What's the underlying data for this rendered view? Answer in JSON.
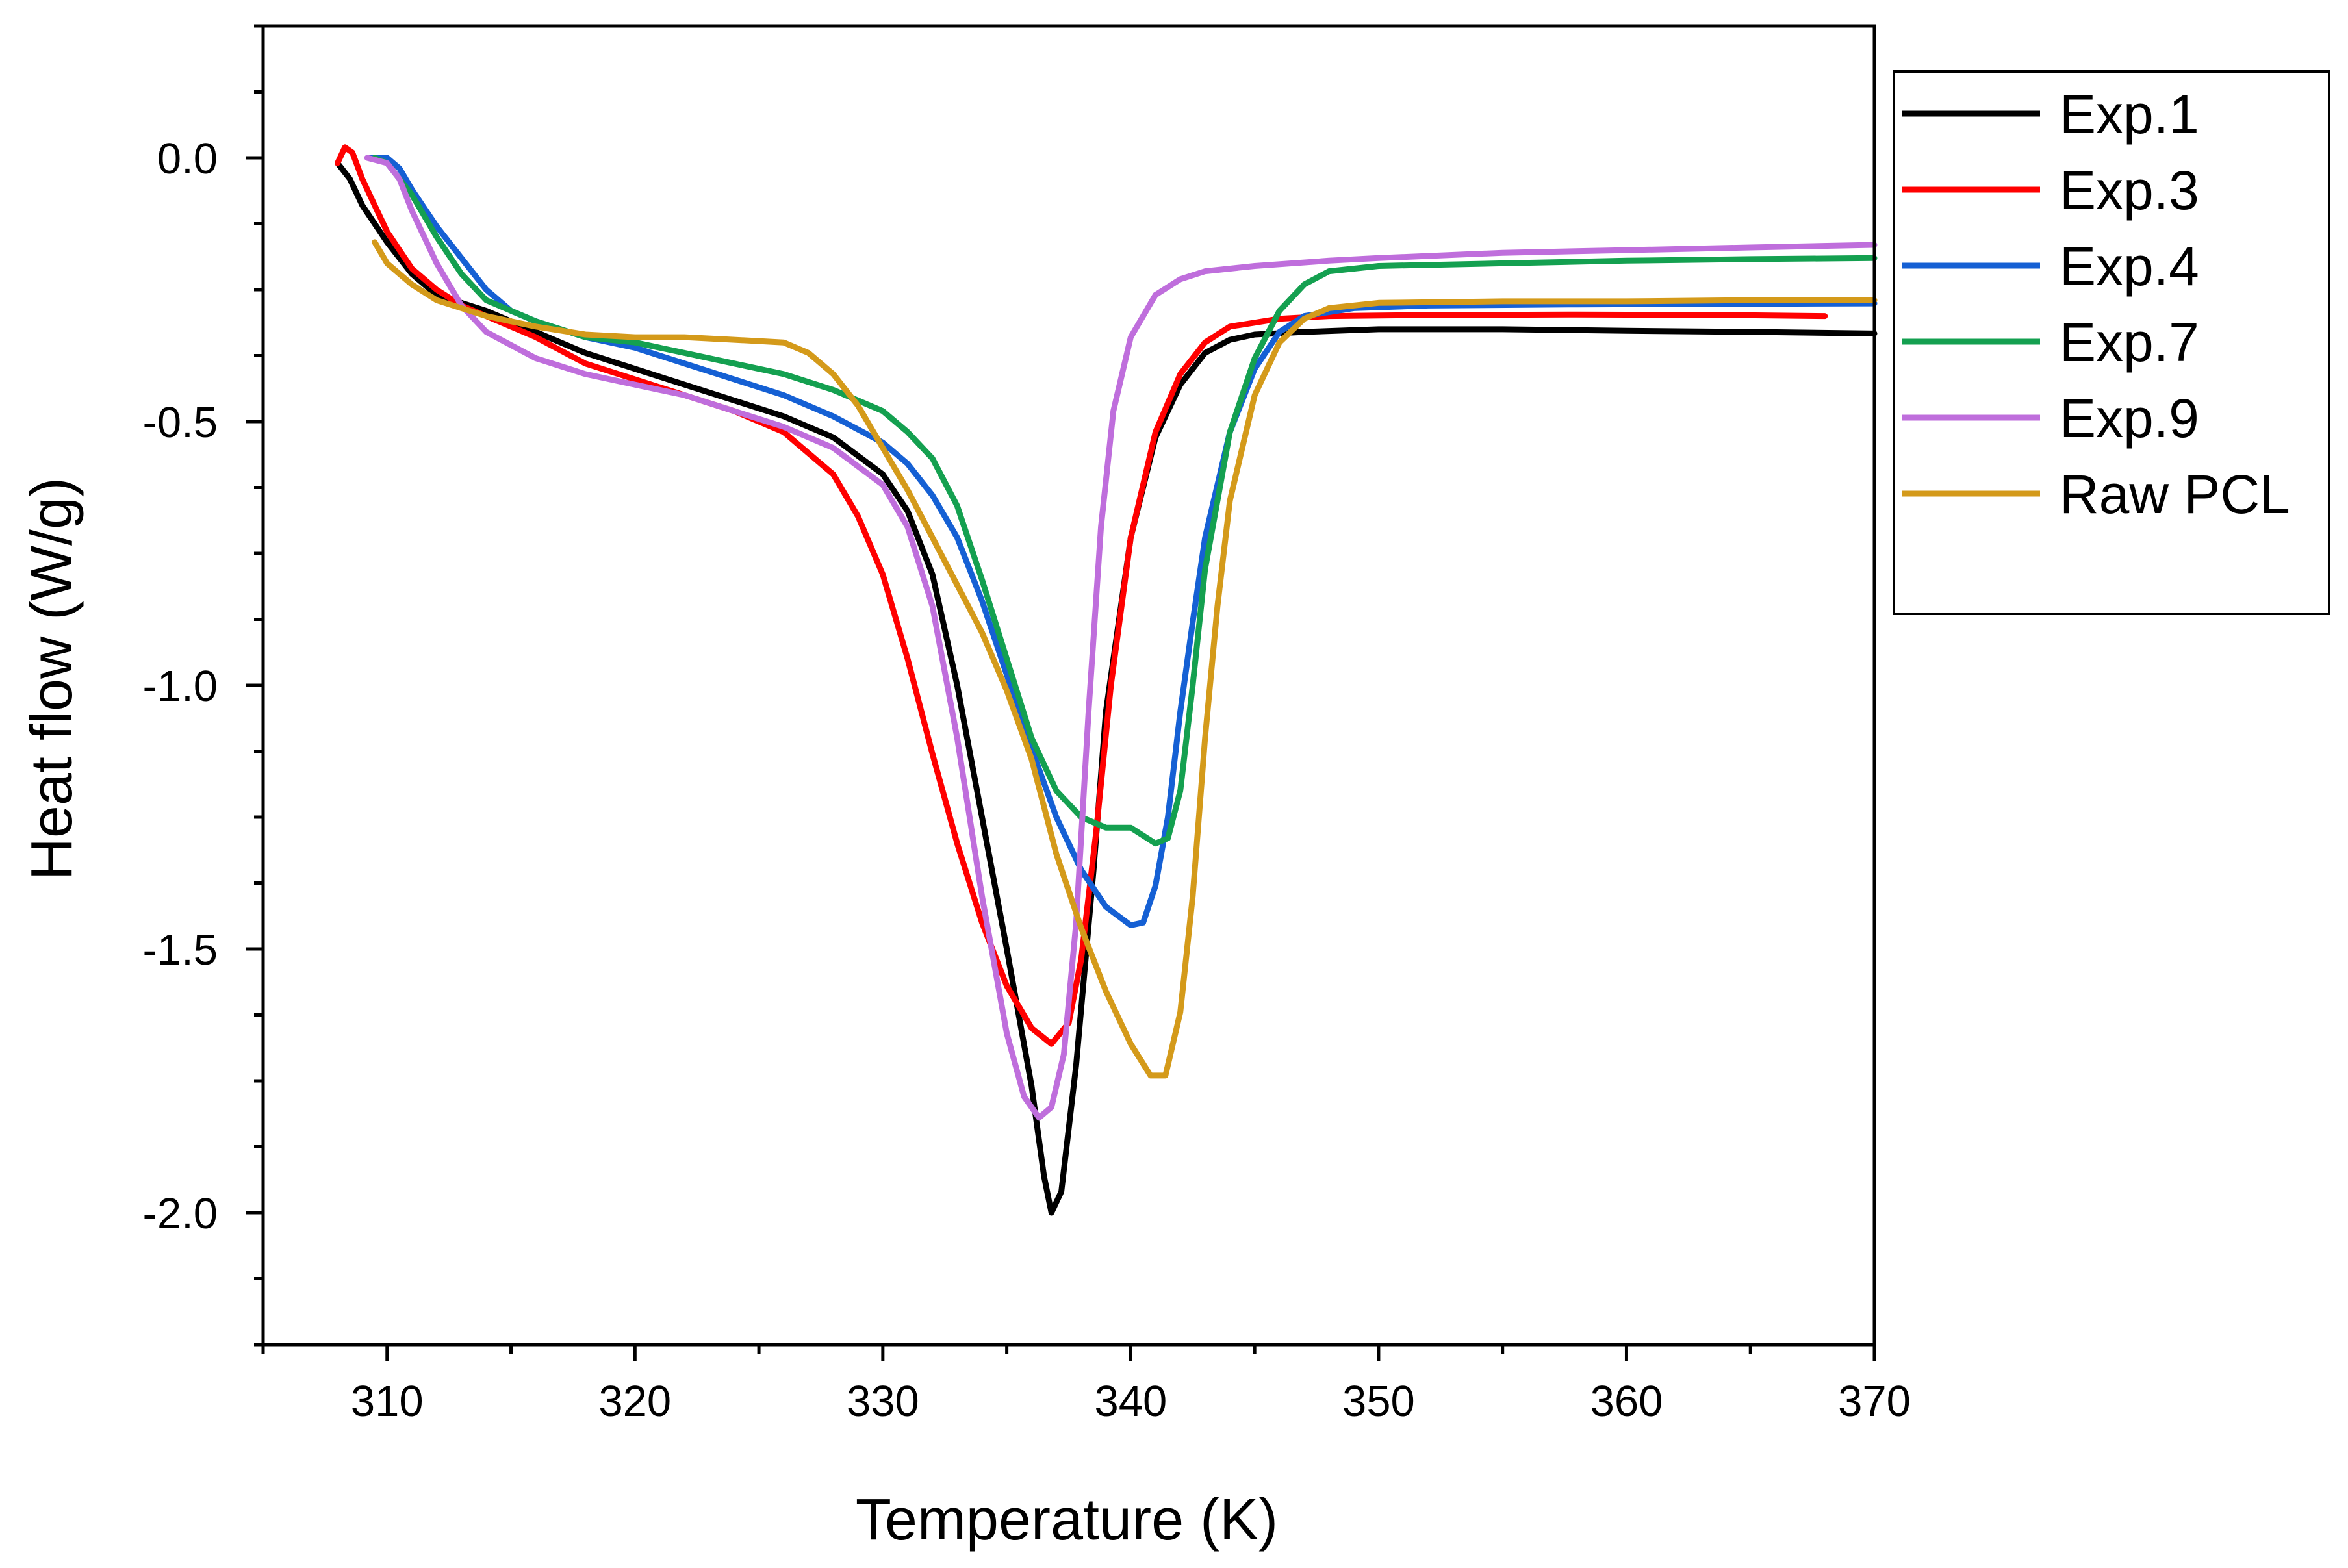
{
  "chart_data": {
    "type": "line",
    "title": "",
    "xlabel": "Temperature (K)",
    "ylabel": "Heat flow (W/g)",
    "xlim": [
      305,
      370
    ],
    "ylim": [
      -2.25,
      0.25
    ],
    "x_ticks": [
      310,
      320,
      330,
      340,
      350,
      360,
      370
    ],
    "x_tick_labels": [
      "310",
      "320",
      "330",
      "340",
      "350",
      "360",
      "370"
    ],
    "y_ticks": [
      0.0,
      -0.5,
      -1.0,
      -1.5,
      -2.0
    ],
    "y_tick_labels": [
      "0.0",
      "-0.5",
      "-1.0",
      "-1.5",
      "-2.0"
    ],
    "grid": false,
    "legend_position": "right",
    "series": [
      {
        "name": "Exp.1",
        "color": "#000000",
        "points": [
          [
            308.0,
            -0.01
          ],
          [
            308.5,
            -0.04
          ],
          [
            309.0,
            -0.09
          ],
          [
            310.0,
            -0.16
          ],
          [
            311.0,
            -0.22
          ],
          [
            312.0,
            -0.26
          ],
          [
            314.0,
            -0.29
          ],
          [
            316.0,
            -0.33
          ],
          [
            318.0,
            -0.37
          ],
          [
            320.0,
            -0.4
          ],
          [
            322.0,
            -0.43
          ],
          [
            324.0,
            -0.46
          ],
          [
            326.0,
            -0.49
          ],
          [
            328.0,
            -0.53
          ],
          [
            330.0,
            -0.6
          ],
          [
            331.0,
            -0.67
          ],
          [
            332.0,
            -0.79
          ],
          [
            333.0,
            -1.0
          ],
          [
            334.0,
            -1.25
          ],
          [
            335.0,
            -1.5
          ],
          [
            336.0,
            -1.76
          ],
          [
            336.5,
            -1.93
          ],
          [
            336.8,
            -2.0
          ],
          [
            337.2,
            -1.96
          ],
          [
            337.8,
            -1.72
          ],
          [
            338.5,
            -1.35
          ],
          [
            339.0,
            -1.05
          ],
          [
            340.0,
            -0.72
          ],
          [
            341.0,
            -0.53
          ],
          [
            342.0,
            -0.43
          ],
          [
            343.0,
            -0.37
          ],
          [
            344.0,
            -0.345
          ],
          [
            345.0,
            -0.335
          ],
          [
            347.0,
            -0.33
          ],
          [
            350.0,
            -0.325
          ],
          [
            355.0,
            -0.325
          ],
          [
            360.0,
            -0.328
          ],
          [
            365.0,
            -0.33
          ],
          [
            370.0,
            -0.333
          ]
        ]
      },
      {
        "name": "Exp.3",
        "color": "#ff0000",
        "points": [
          [
            308.0,
            -0.01
          ],
          [
            308.3,
            0.02
          ],
          [
            308.6,
            0.01
          ],
          [
            309.0,
            -0.04
          ],
          [
            310.0,
            -0.14
          ],
          [
            311.0,
            -0.21
          ],
          [
            312.0,
            -0.25
          ],
          [
            313.0,
            -0.28
          ],
          [
            314.0,
            -0.3
          ],
          [
            316.0,
            -0.34
          ],
          [
            318.0,
            -0.39
          ],
          [
            320.0,
            -0.42
          ],
          [
            322.0,
            -0.45
          ],
          [
            324.0,
            -0.48
          ],
          [
            326.0,
            -0.52
          ],
          [
            328.0,
            -0.6
          ],
          [
            329.0,
            -0.68
          ],
          [
            330.0,
            -0.79
          ],
          [
            331.0,
            -0.95
          ],
          [
            332.0,
            -1.13
          ],
          [
            333.0,
            -1.3
          ],
          [
            334.0,
            -1.45
          ],
          [
            335.0,
            -1.57
          ],
          [
            336.0,
            -1.65
          ],
          [
            336.8,
            -1.68
          ],
          [
            337.5,
            -1.64
          ],
          [
            338.0,
            -1.52
          ],
          [
            338.6,
            -1.28
          ],
          [
            339.2,
            -1.0
          ],
          [
            340.0,
            -0.72
          ],
          [
            341.0,
            -0.52
          ],
          [
            342.0,
            -0.41
          ],
          [
            343.0,
            -0.35
          ],
          [
            344.0,
            -0.32
          ],
          [
            346.0,
            -0.305
          ],
          [
            348.0,
            -0.3
          ],
          [
            352.0,
            -0.298
          ],
          [
            358.0,
            -0.297
          ],
          [
            364.0,
            -0.298
          ],
          [
            368.0,
            -0.3
          ]
        ]
      },
      {
        "name": "Exp.4",
        "color": "#1560d4",
        "points": [
          [
            309.3,
            0.0
          ],
          [
            310.0,
            0.0
          ],
          [
            310.5,
            -0.02
          ],
          [
            311.0,
            -0.06
          ],
          [
            312.0,
            -0.13
          ],
          [
            313.0,
            -0.19
          ],
          [
            314.0,
            -0.25
          ],
          [
            315.0,
            -0.29
          ],
          [
            316.0,
            -0.31
          ],
          [
            318.0,
            -0.34
          ],
          [
            320.0,
            -0.36
          ],
          [
            322.0,
            -0.39
          ],
          [
            324.0,
            -0.42
          ],
          [
            326.0,
            -0.45
          ],
          [
            328.0,
            -0.49
          ],
          [
            330.0,
            -0.54
          ],
          [
            331.0,
            -0.58
          ],
          [
            332.0,
            -0.64
          ],
          [
            333.0,
            -0.72
          ],
          [
            334.0,
            -0.84
          ],
          [
            335.0,
            -0.98
          ],
          [
            336.0,
            -1.12
          ],
          [
            337.0,
            -1.25
          ],
          [
            338.0,
            -1.35
          ],
          [
            339.0,
            -1.42
          ],
          [
            340.0,
            -1.455
          ],
          [
            340.5,
            -1.45
          ],
          [
            341.0,
            -1.38
          ],
          [
            341.5,
            -1.25
          ],
          [
            342.0,
            -1.05
          ],
          [
            342.5,
            -0.88
          ],
          [
            343.0,
            -0.72
          ],
          [
            344.0,
            -0.52
          ],
          [
            345.0,
            -0.4
          ],
          [
            346.0,
            -0.33
          ],
          [
            347.0,
            -0.3
          ],
          [
            349.0,
            -0.285
          ],
          [
            352.0,
            -0.28
          ],
          [
            358.0,
            -0.278
          ],
          [
            364.0,
            -0.277
          ],
          [
            370.0,
            -0.276
          ]
        ]
      },
      {
        "name": "Exp.7",
        "color": "#14a050",
        "points": [
          [
            309.5,
            0.0
          ],
          [
            310.0,
            -0.01
          ],
          [
            311.0,
            -0.07
          ],
          [
            312.0,
            -0.15
          ],
          [
            313.0,
            -0.22
          ],
          [
            314.0,
            -0.27
          ],
          [
            316.0,
            -0.31
          ],
          [
            318.0,
            -0.34
          ],
          [
            320.0,
            -0.35
          ],
          [
            322.0,
            -0.37
          ],
          [
            324.0,
            -0.39
          ],
          [
            326.0,
            -0.41
          ],
          [
            328.0,
            -0.44
          ],
          [
            330.0,
            -0.48
          ],
          [
            331.0,
            -0.52
          ],
          [
            332.0,
            -0.57
          ],
          [
            333.0,
            -0.66
          ],
          [
            334.0,
            -0.8
          ],
          [
            335.0,
            -0.95
          ],
          [
            336.0,
            -1.1
          ],
          [
            337.0,
            -1.2
          ],
          [
            338.0,
            -1.25
          ],
          [
            339.0,
            -1.27
          ],
          [
            340.0,
            -1.27
          ],
          [
            341.0,
            -1.3
          ],
          [
            341.5,
            -1.29
          ],
          [
            342.0,
            -1.2
          ],
          [
            342.5,
            -1.0
          ],
          [
            343.0,
            -0.78
          ],
          [
            344.0,
            -0.52
          ],
          [
            345.0,
            -0.38
          ],
          [
            346.0,
            -0.29
          ],
          [
            347.0,
            -0.24
          ],
          [
            348.0,
            -0.215
          ],
          [
            350.0,
            -0.205
          ],
          [
            355.0,
            -0.2
          ],
          [
            360.0,
            -0.195
          ],
          [
            365.0,
            -0.192
          ],
          [
            370.0,
            -0.19
          ]
        ]
      },
      {
        "name": "Exp.9",
        "color": "#bf6edc",
        "points": [
          [
            309.2,
            0.0
          ],
          [
            310.0,
            -0.01
          ],
          [
            310.5,
            -0.04
          ],
          [
            311.0,
            -0.1
          ],
          [
            312.0,
            -0.2
          ],
          [
            313.0,
            -0.28
          ],
          [
            314.0,
            -0.33
          ],
          [
            316.0,
            -0.38
          ],
          [
            318.0,
            -0.41
          ],
          [
            320.0,
            -0.43
          ],
          [
            322.0,
            -0.45
          ],
          [
            324.0,
            -0.48
          ],
          [
            326.0,
            -0.51
          ],
          [
            328.0,
            -0.55
          ],
          [
            330.0,
            -0.62
          ],
          [
            331.0,
            -0.7
          ],
          [
            332.0,
            -0.85
          ],
          [
            333.0,
            -1.1
          ],
          [
            334.0,
            -1.4
          ],
          [
            335.0,
            -1.66
          ],
          [
            335.7,
            -1.78
          ],
          [
            336.3,
            -1.82
          ],
          [
            336.8,
            -1.8
          ],
          [
            337.3,
            -1.7
          ],
          [
            337.8,
            -1.45
          ],
          [
            338.3,
            -1.05
          ],
          [
            338.8,
            -0.7
          ],
          [
            339.3,
            -0.48
          ],
          [
            340.0,
            -0.34
          ],
          [
            341.0,
            -0.26
          ],
          [
            342.0,
            -0.23
          ],
          [
            343.0,
            -0.215
          ],
          [
            345.0,
            -0.205
          ],
          [
            348.0,
            -0.195
          ],
          [
            350.0,
            -0.19
          ],
          [
            355.0,
            -0.18
          ],
          [
            360.0,
            -0.175
          ],
          [
            365.0,
            -0.17
          ],
          [
            370.0,
            -0.165
          ]
        ]
      },
      {
        "name": "Raw PCL",
        "color": "#d49a1a",
        "points": [
          [
            309.5,
            -0.16
          ],
          [
            310.0,
            -0.2
          ],
          [
            311.0,
            -0.24
          ],
          [
            312.0,
            -0.27
          ],
          [
            314.0,
            -0.3
          ],
          [
            316.0,
            -0.32
          ],
          [
            318.0,
            -0.335
          ],
          [
            320.0,
            -0.34
          ],
          [
            322.0,
            -0.34
          ],
          [
            324.0,
            -0.345
          ],
          [
            326.0,
            -0.35
          ],
          [
            327.0,
            -0.37
          ],
          [
            328.0,
            -0.41
          ],
          [
            329.0,
            -0.47
          ],
          [
            330.0,
            -0.55
          ],
          [
            331.0,
            -0.63
          ],
          [
            332.0,
            -0.72
          ],
          [
            333.0,
            -0.81
          ],
          [
            334.0,
            -0.9
          ],
          [
            335.0,
            -1.01
          ],
          [
            336.0,
            -1.14
          ],
          [
            337.0,
            -1.32
          ],
          [
            338.0,
            -1.46
          ],
          [
            339.0,
            -1.58
          ],
          [
            340.0,
            -1.68
          ],
          [
            340.8,
            -1.74
          ],
          [
            341.4,
            -1.74
          ],
          [
            342.0,
            -1.62
          ],
          [
            342.5,
            -1.4
          ],
          [
            343.0,
            -1.1
          ],
          [
            343.5,
            -0.85
          ],
          [
            344.0,
            -0.65
          ],
          [
            345.0,
            -0.45
          ],
          [
            346.0,
            -0.35
          ],
          [
            347.0,
            -0.305
          ],
          [
            348.0,
            -0.285
          ],
          [
            350.0,
            -0.275
          ],
          [
            355.0,
            -0.272
          ],
          [
            360.0,
            -0.272
          ],
          [
            365.0,
            -0.27
          ],
          [
            370.0,
            -0.27
          ]
        ]
      }
    ]
  }
}
